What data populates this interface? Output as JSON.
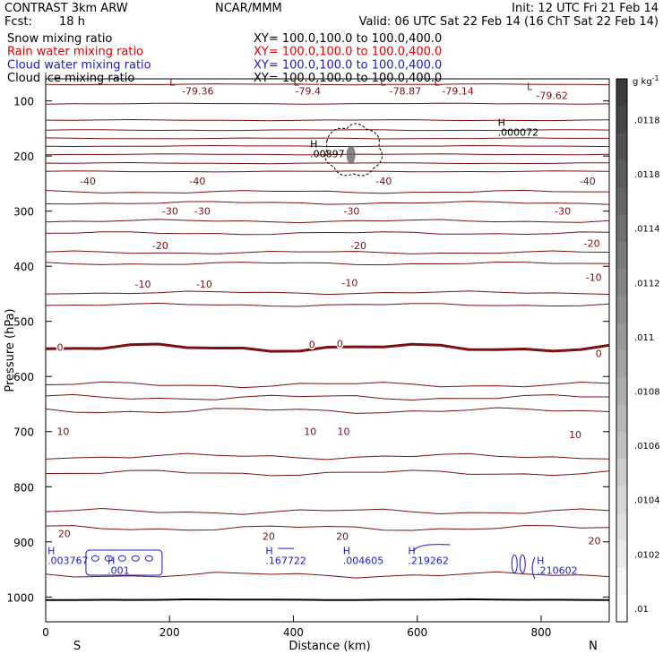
{
  "header": {
    "model": "CONTRAST  3km ARW",
    "org": "NCAR/MMM",
    "init": "Init: 12 UTC Fri 21 Feb 14",
    "fcst_label": "Fcst:",
    "fcst_value": "18 h",
    "valid": "Valid: 06 UTC Sat 22 Feb 14 (16 ChT Sat 22 Feb 14)"
  },
  "fields": [
    {
      "name": "Snow mixing ratio",
      "xy": "XY=  100.0,100.0 to 100.0,400.0",
      "color": "#000000"
    },
    {
      "name": "Rain water mixing ratio",
      "xy": "XY=  100.0,100.0 to 100.0,400.0",
      "color": "#e00000"
    },
    {
      "name": "Cloud water mixing ratio",
      "xy": "XY=  100.0,100.0 to 100.0,400.0",
      "color": "#1a1acc"
    },
    {
      "name": "Cloud ice mixing ratio",
      "xy": "XY=  100.0,100.0 to 100.0,400.0",
      "color": "#000000"
    }
  ],
  "colors": {
    "temperature": "#7a1010",
    "cloud_water": "#1a1acc",
    "text": "#000000"
  },
  "chart_data": {
    "type": "cross-section contour",
    "xlabel": "Distance (km)",
    "ylabel": "Pressure (hPa)",
    "x_ticks": [
      "0",
      "200",
      "400",
      "600",
      "800"
    ],
    "x_tick_values": [
      0,
      200,
      400,
      600,
      800
    ],
    "xlim": [
      0,
      910
    ],
    "y_ticks": [
      "100",
      "200",
      "300",
      "400",
      "500",
      "600",
      "700",
      "800",
      "900",
      "1000"
    ],
    "y_tick_values": [
      100,
      200,
      300,
      400,
      500,
      600,
      700,
      800,
      900,
      1000
    ],
    "ylim": [
      60,
      1045
    ],
    "end_labels": {
      "left": "S",
      "right": "N"
    },
    "colorbar": {
      "unit": "g kg",
      "unit_exp": "-1",
      "tick_labels": [
        ".0118",
        ".0118",
        ".0114",
        ".0112",
        ".011",
        ".0108",
        ".0106",
        ".0104",
        ".0102",
        ".01"
      ]
    },
    "contour_labels": [
      {
        "text": "-79.36",
        "x": 220,
        "p": 82
      },
      {
        "text": "-79.4",
        "x": 403,
        "p": 82
      },
      {
        "text": "-78.87",
        "x": 555,
        "p": 82
      },
      {
        "text": "-79.14",
        "x": 640,
        "p": 82
      },
      {
        "text": "-79.62",
        "x": 792,
        "p": 90
      },
      {
        "text": "-40",
        "x": 55,
        "p": 245
      },
      {
        "text": "-40",
        "x": 232,
        "p": 245
      },
      {
        "text": "-40",
        "x": 533,
        "p": 245
      },
      {
        "text": "-40",
        "x": 862,
        "p": 245
      },
      {
        "text": "-30",
        "x": 188,
        "p": 300
      },
      {
        "text": "-30",
        "x": 240,
        "p": 300
      },
      {
        "text": "-30",
        "x": 481,
        "p": 300
      },
      {
        "text": "-30",
        "x": 822,
        "p": 300
      },
      {
        "text": "-20",
        "x": 172,
        "p": 362
      },
      {
        "text": "-20",
        "x": 492,
        "p": 362
      },
      {
        "text": "-20",
        "x": 869,
        "p": 358
      },
      {
        "text": "-10",
        "x": 144,
        "p": 432
      },
      {
        "text": "-10",
        "x": 243,
        "p": 432
      },
      {
        "text": "-10",
        "x": 478,
        "p": 430
      },
      {
        "text": "-10",
        "x": 872,
        "p": 420
      },
      {
        "text": "0",
        "x": 18,
        "p": 547
      },
      {
        "text": "0",
        "x": 425,
        "p": 542
      },
      {
        "text": "0",
        "x": 470,
        "p": 540
      },
      {
        "text": "0",
        "x": 888,
        "p": 558
      },
      {
        "text": "10",
        "x": 18,
        "p": 700
      },
      {
        "text": "10",
        "x": 417,
        "p": 700
      },
      {
        "text": "10",
        "x": 471,
        "p": 700
      },
      {
        "text": "10",
        "x": 845,
        "p": 705
      },
      {
        "text": "20",
        "x": 20,
        "p": 885
      },
      {
        "text": "20",
        "x": 350,
        "p": 890
      },
      {
        "text": "20",
        "x": 469,
        "p": 890
      },
      {
        "text": "20",
        "x": 876,
        "p": 898
      }
    ],
    "low_markers": [
      {
        "text": "L",
        "x": 200,
        "p": 66
      },
      {
        "text": "L",
        "x": 400,
        "p": 66
      },
      {
        "text": "L",
        "x": 540,
        "p": 66
      },
      {
        "text": "L",
        "x": 627,
        "p": 66
      },
      {
        "text": "L",
        "x": 777,
        "p": 74
      }
    ],
    "high_markers": [
      {
        "text": "H",
        "value": ".000072",
        "x": 730,
        "p": 145,
        "color": "#000000"
      },
      {
        "text": "H",
        "value": ".00897",
        "x": 427,
        "p": 184,
        "color": "#000000"
      },
      {
        "text": "H",
        "value": ".003767",
        "x": 3,
        "p": 922,
        "color": "#1a1acc"
      },
      {
        "text": "H",
        "value": ".001",
        "x": 100,
        "p": 940,
        "color": "#1a1acc"
      },
      {
        "text": "H",
        "value": ".167722",
        "x": 355,
        "p": 922,
        "color": "#1a1acc"
      },
      {
        "text": "H",
        "value": ".004605",
        "x": 480,
        "p": 922,
        "color": "#1a1acc"
      },
      {
        "text": "H",
        "value": ".219262",
        "x": 585,
        "p": 922,
        "color": "#1a1acc"
      },
      {
        "text": "H",
        "value": ".210602",
        "x": 793,
        "p": 940,
        "color": "#1a1acc"
      }
    ],
    "thin_isotherms_p": [
      70,
      105,
      135,
      153,
      168,
      182,
      197,
      213,
      228,
      265,
      285,
      318,
      340,
      375,
      395,
      448,
      470,
      615,
      638,
      662,
      745,
      775,
      845,
      875,
      960
    ],
    "thick_isotherm_p": 548,
    "surface_p": 1005
  }
}
